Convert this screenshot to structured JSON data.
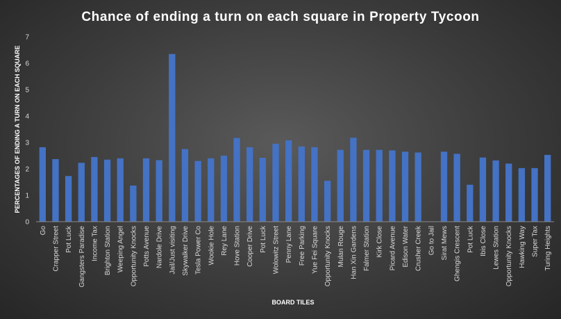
{
  "chart_data": {
    "type": "bar",
    "title": "Chance  of  ending  a  turn  on  each  square  in  Property  Tycoon",
    "xlabel": "BOARD TILES",
    "ylabel": "PERCENTAGES OF ENDING A TURN ON EACH SQUARE",
    "ylim": [
      0,
      7
    ],
    "yticks": [
      0,
      1,
      2,
      3,
      4,
      5,
      6,
      7
    ],
    "grid": false,
    "bar_color": "#4472c4",
    "categories": [
      "Go",
      "Crapper Street",
      "Pot Luck",
      "Gangsters Paradise",
      "Income Tax",
      "Brighton Station",
      "Weeping Angel",
      "Opportunity Knocks",
      "Potts Avenue",
      "Nardole Drive",
      "Jail/Just visiting",
      "Skywalker Drive",
      "Tesla Power Co",
      "Wookie Hole",
      "Rey Lane",
      "Hove Station",
      "Cooper Drive",
      "Pot Luck",
      "Wolowitz Street",
      "Penny Lane",
      "Free Parking",
      "Yue Fei Square",
      "Opportunity Knocks",
      "Mulan Rouge",
      "Han Xin Gardens",
      "Falmer Station",
      "Kirk Close",
      "Picard Avenue",
      "Edison Water",
      "Crusher Creek",
      "Go to Jail",
      "Sirat Mews",
      "Ghengis Crescent",
      "Pot Luck",
      "Ibis Close",
      "Lewes Station",
      "Opportunity Knocks",
      "Hawking Way",
      "Super Tax",
      "Turing Heights"
    ],
    "values": [
      2.82,
      2.37,
      1.73,
      2.23,
      2.45,
      2.35,
      2.4,
      1.37,
      2.4,
      2.33,
      6.35,
      2.75,
      2.3,
      2.4,
      2.5,
      3.17,
      2.82,
      2.42,
      2.95,
      3.08,
      2.85,
      2.82,
      1.55,
      2.72,
      3.18,
      2.72,
      2.72,
      2.7,
      2.65,
      2.62,
      0,
      2.65,
      2.57,
      1.4,
      2.43,
      2.32,
      2.2,
      2.03,
      2.03,
      2.53
    ]
  }
}
